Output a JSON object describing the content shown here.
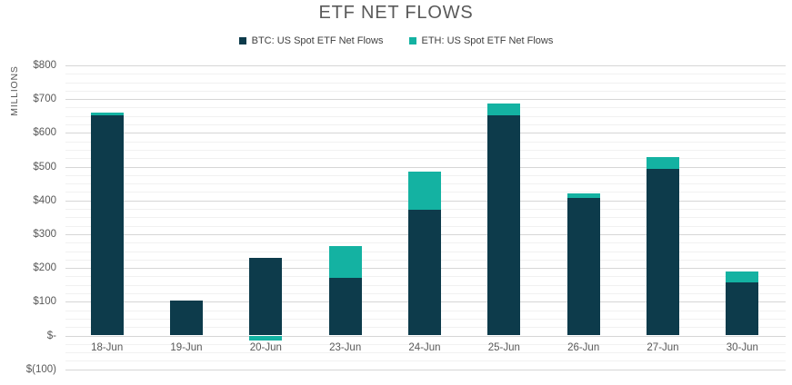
{
  "chart": {
    "title": "ETF NET FLOWS",
    "ylabel": "MILLIONS"
  },
  "chart_data": {
    "type": "bar",
    "stacked": true,
    "title": "ETF NET FLOWS",
    "xlabel": "",
    "ylabel": "MILLIONS",
    "categories": [
      "18-Jun",
      "19-Jun",
      "20-Jun",
      "23-Jun",
      "24-Jun",
      "25-Jun",
      "26-Jun",
      "27-Jun",
      "30-Jun"
    ],
    "series": [
      {
        "name": "BTC: US Spot ETF Net Flows",
        "color": "#0d3b4b",
        "values": [
          651,
          103,
          230,
          170,
          373,
          652,
          406,
          492,
          156
        ]
      },
      {
        "name": "ETH: US Spot ETF Net Flows",
        "color": "#14b2a2",
        "values": [
          8,
          0,
          -15,
          96,
          113,
          36,
          15,
          36,
          34
        ]
      }
    ],
    "ylim": [
      -100,
      800
    ],
    "ytick_step": 100,
    "minor_tick_step": 25,
    "ytick_labels": [
      "$800",
      "$700",
      "$600",
      "$500",
      "$400",
      "$300",
      "$200",
      "$100",
      "$-",
      "$(100)"
    ],
    "grid": true,
    "legend_position": "top"
  },
  "colors": {
    "title_text": "#595959",
    "axis_text": "#595959",
    "legend_text": "#404040",
    "grid_major": "#d6d6d6",
    "grid_minor": "#f1f1f1",
    "background": "#ffffff"
  }
}
